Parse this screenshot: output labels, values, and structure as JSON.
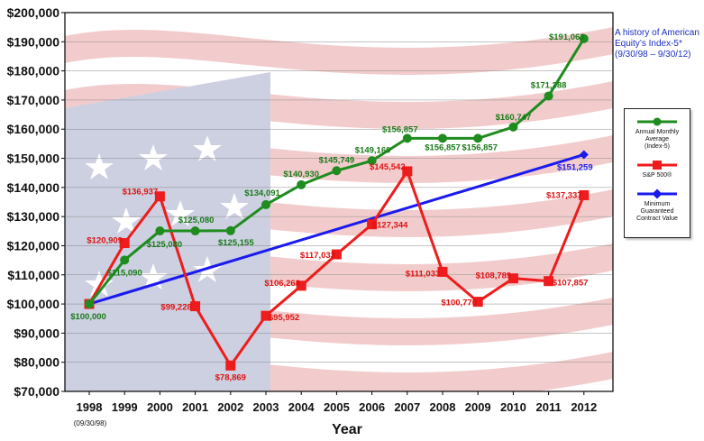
{
  "annotation": {
    "title_line1": "A history of American",
    "title_line2": "Equity’s Index-5*",
    "title_line3": "(9/30/98 – 9/30/12)"
  },
  "legend": {
    "items": [
      {
        "label_line1": "Annual Monthly",
        "label_line2": "Average",
        "label_line3": "(Index-5)",
        "color": "#1e8c1e",
        "marker": "circle"
      },
      {
        "label_line1": "S&P 500®",
        "label_line2": "",
        "label_line3": "",
        "color": "#ee1c1c",
        "marker": "square"
      },
      {
        "label_line1": "Minimum",
        "label_line2": "Guaranteed",
        "label_line3": "Contract Value",
        "color": "#1a1aee",
        "marker": "diamond"
      }
    ]
  },
  "chart_data": {
    "type": "line",
    "x": [
      "1998",
      "1999",
      "2000",
      "2001",
      "2002",
      "2003",
      "2004",
      "2005",
      "2006",
      "2007",
      "2008",
      "2009",
      "2010",
      "2011",
      "2012"
    ],
    "x_sublabel": "(09/30/98)",
    "xlabel": "Year",
    "ylabel": "",
    "ylim": [
      70000,
      200000
    ],
    "yticks": [
      "$70,000",
      "$80,000",
      "$90,000",
      "$100,000",
      "$110,000",
      "$120,000",
      "$130,000",
      "$140,000",
      "$150,000",
      "$160,000",
      "$170,000",
      "$180,000",
      "$190,000",
      "$200,000"
    ],
    "series": [
      {
        "name": "Annual Monthly Average (Index-5)",
        "color": "#1e8c1e",
        "label_color": "#1a7a1a",
        "values": [
          100000,
          115090,
          125080,
          125080,
          125155,
          134091,
          140930,
          145749,
          149160,
          156857,
          156857,
          156857,
          160747,
          171388,
          191063
        ],
        "labels": [
          "$100,000",
          "$115,090",
          "$125,080",
          "$125,080",
          "$125,155",
          "$134,091",
          "$140,930",
          "$145,749",
          "$149,160",
          "$156,857",
          "$156,857",
          "$156,857",
          "$160,747",
          "$171,388",
          "$191,063"
        ]
      },
      {
        "name": "S&P 500®",
        "color": "#ee1c1c",
        "label_color": "#dd1111",
        "values": [
          100000,
          120909,
          136937,
          99228,
          78869,
          95952,
          106268,
          117033,
          127344,
          145542,
          111033,
          100770,
          108789,
          107857,
          137337
        ],
        "labels": [
          "",
          "$120,909",
          "$136,937",
          "$99,228",
          "$78,869",
          "$95,952",
          "$106,268",
          "$117,033",
          "$127,344",
          "$145,542",
          "$111,033",
          "$100,770",
          "$108,789",
          "$107,857",
          "$137,337"
        ]
      },
      {
        "name": "Minimum Guaranteed Contract Value",
        "color": "#1a1aee",
        "label_color": "#1a1aee",
        "x": [
          "1998",
          "2012"
        ],
        "values": [
          100000,
          151259
        ],
        "labels": [
          "",
          "$151,259"
        ]
      }
    ]
  }
}
